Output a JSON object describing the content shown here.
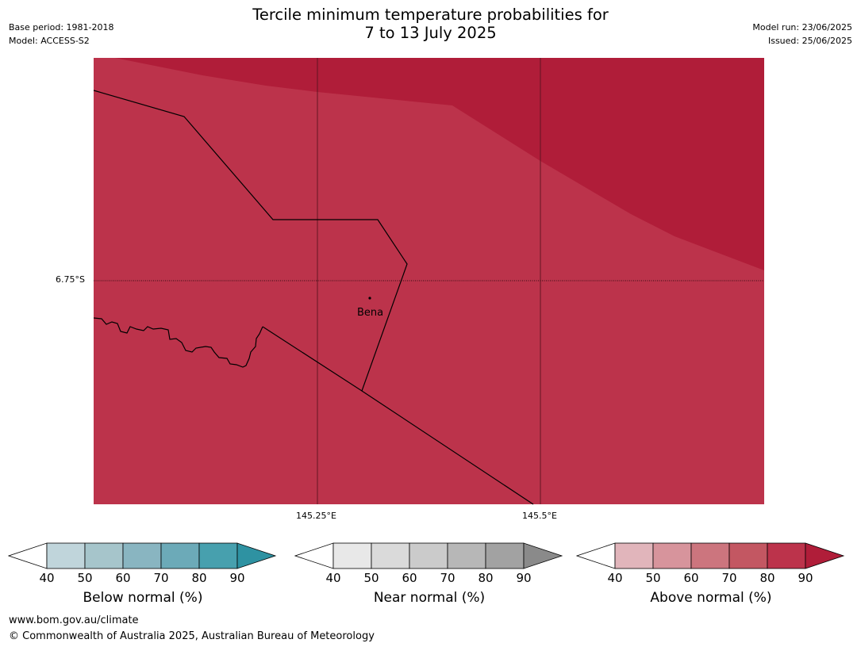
{
  "title": {
    "line1": "Tercile minimum temperature probabilities for",
    "line2": "7 to 13 July 2025"
  },
  "meta": {
    "base_period": "Base period: 1981-2018",
    "model": "Model: ACCESS-S2",
    "model_run": "Model run: 23/06/2025",
    "issued": "Issued: 25/06/2025"
  },
  "map": {
    "latitude_label": "6.75°S",
    "longitude_labels": [
      "145.25°E",
      "145.5°E"
    ],
    "place": "Bena",
    "colors": {
      "base_fill": "#bc334b",
      "upper_fill": "#b01d39",
      "border_line": "#000000"
    }
  },
  "colorbars": [
    {
      "label": "Below normal (%)",
      "ticks": [
        "40",
        "50",
        "60",
        "70",
        "80",
        "90"
      ],
      "colors": [
        "#ffffff",
        "#c0d5db",
        "#a6c5cb",
        "#89b5c1",
        "#6caab8",
        "#47a0ae",
        "#2e92a2"
      ]
    },
    {
      "label": "Near normal (%)",
      "ticks": [
        "40",
        "50",
        "60",
        "70",
        "80",
        "90"
      ],
      "colors": [
        "#ffffff",
        "#e8e8e8",
        "#dadada",
        "#cbcbcb",
        "#b7b7b7",
        "#a2a2a2",
        "#8a8a8a"
      ]
    },
    {
      "label": "Above normal (%)",
      "ticks": [
        "40",
        "50",
        "60",
        "70",
        "80",
        "90"
      ],
      "colors": [
        "#ffffff",
        "#e1b5bb",
        "#d7949c",
        "#cc757e",
        "#c35762",
        "#bc334b",
        "#b01d39"
      ]
    }
  ],
  "footer": {
    "url": "www.bom.gov.au/climate",
    "copyright": "© Commonwealth of Australia 2025, Australian Bureau of Meteorology"
  }
}
